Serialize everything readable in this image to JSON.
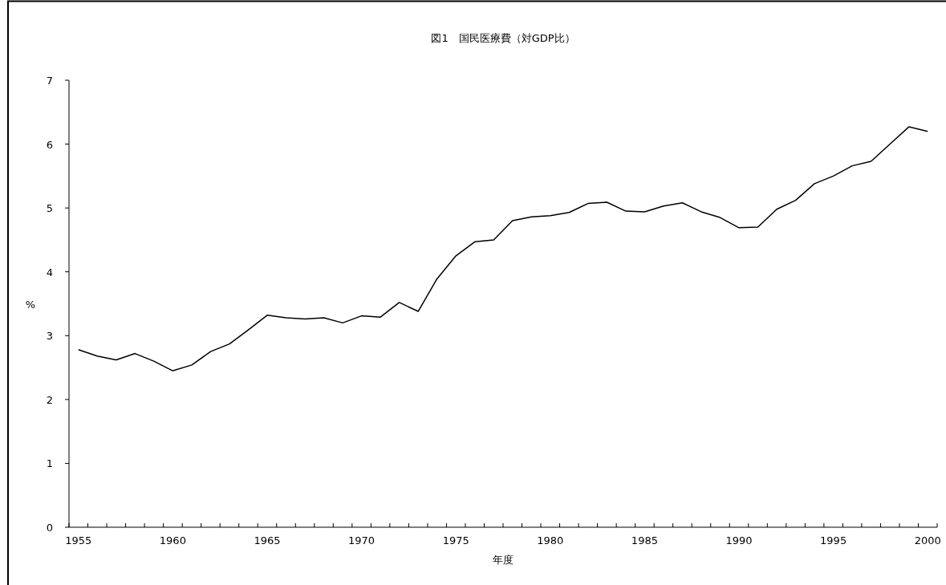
{
  "chart_data": {
    "type": "line",
    "title": "図1　国民医療費（対GDP比）",
    "xlabel": "年度",
    "ylabel": "%",
    "categories": [
      "1955",
      null,
      null,
      null,
      null,
      "1960",
      null,
      null,
      null,
      null,
      "1965",
      null,
      null,
      null,
      null,
      "1970",
      null,
      null,
      null,
      null,
      "1975",
      null,
      null,
      null,
      null,
      "1980",
      null,
      null,
      null,
      null,
      "1985",
      null,
      null,
      null,
      null,
      "1990",
      null,
      null,
      null,
      null,
      "1995",
      null,
      null,
      null,
      null,
      "2000"
    ],
    "series": [
      {
        "color": "#000000",
        "values": [
          2.78,
          2.68,
          2.62,
          2.72,
          2.6,
          2.45,
          2.54,
          2.75,
          2.87,
          3.09,
          3.32,
          3.28,
          3.26,
          3.28,
          3.2,
          3.31,
          3.29,
          3.52,
          3.38,
          3.89,
          4.25,
          4.47,
          4.5,
          4.8,
          4.86,
          4.88,
          4.93,
          5.07,
          5.09,
          4.95,
          4.94,
          5.03,
          5.08,
          4.94,
          4.85,
          4.69,
          4.7,
          4.98,
          5.12,
          5.38,
          5.5,
          5.66,
          5.73,
          6.0,
          6.27,
          6.2
        ]
      }
    ],
    "ylim": [
      0,
      7
    ],
    "yticks": [
      0,
      1,
      2,
      3,
      4,
      5,
      6,
      7
    ],
    "marker": "none",
    "line_style": "solid"
  }
}
